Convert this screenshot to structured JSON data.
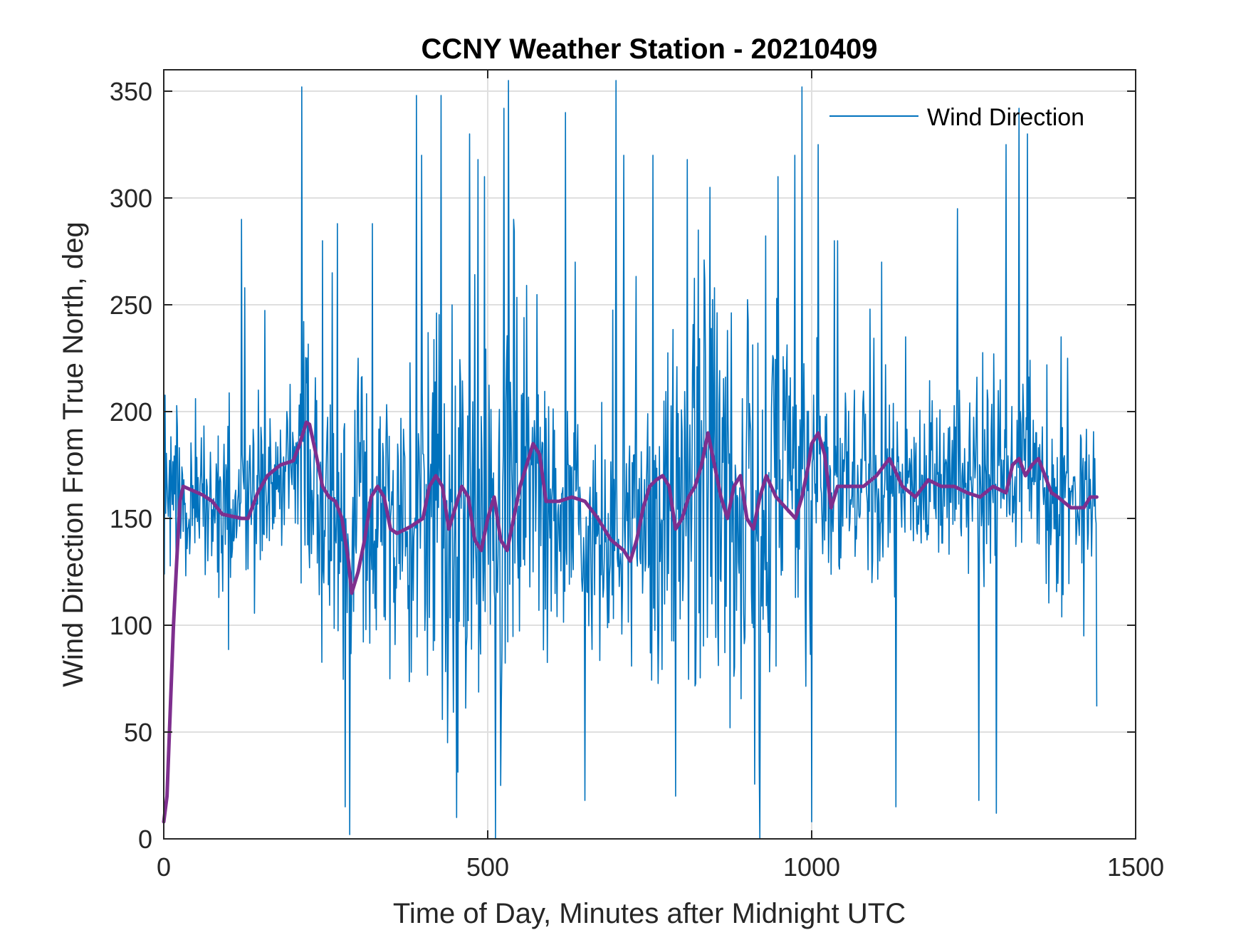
{
  "chart_data": {
    "type": "line",
    "title": "CCNY Weather Station - 20210409",
    "xlabel": "Time of Day, Minutes after Midnight UTC",
    "ylabel": "Wind Direction From True North, deg",
    "xlim": [
      0,
      1500
    ],
    "ylim": [
      0,
      360
    ],
    "xticks": [
      0,
      500,
      1000,
      1500
    ],
    "xtick_labels": [
      "0",
      "500",
      "1000",
      "1500"
    ],
    "yticks": [
      0,
      50,
      100,
      150,
      200,
      250,
      300,
      350
    ],
    "ytick_labels": [
      "0",
      "50",
      "100",
      "150",
      "200",
      "250",
      "300",
      "350"
    ],
    "grid": true,
    "legend_position": "top-right",
    "colors": {
      "raw": "#0072BD",
      "smooth": "#7E2F8E",
      "grid": "#DFDFDF",
      "axis": "#262626"
    },
    "series": [
      {
        "name": "Wind Direction",
        "role": "raw",
        "x_range": [
          0,
          1440
        ],
        "level_points": [
          [
            0,
            165
          ],
          [
            20,
            162
          ],
          [
            60,
            160
          ],
          [
            100,
            150
          ],
          [
            130,
            158
          ],
          [
            170,
            172
          ],
          [
            200,
            180
          ],
          [
            215,
            188
          ],
          [
            240,
            162
          ],
          [
            270,
            145
          ],
          [
            285,
            125
          ],
          [
            310,
            148
          ],
          [
            350,
            148
          ],
          [
            380,
            150
          ],
          [
            410,
            170
          ],
          [
            440,
            152
          ],
          [
            470,
            155
          ],
          [
            500,
            148
          ],
          [
            530,
            160
          ],
          [
            560,
            178
          ],
          [
            590,
            158
          ],
          [
            630,
            155
          ],
          [
            650,
            140
          ],
          [
            690,
            145
          ],
          [
            720,
            165
          ],
          [
            760,
            150
          ],
          [
            790,
            168
          ],
          [
            820,
            160
          ],
          [
            850,
            155
          ],
          [
            880,
            150
          ],
          [
            910,
            148
          ],
          [
            950,
            158
          ],
          [
            980,
            160
          ],
          [
            1000,
            185
          ],
          [
            1030,
            165
          ],
          [
            1060,
            168
          ],
          [
            1100,
            170
          ],
          [
            1150,
            165
          ],
          [
            1200,
            165
          ],
          [
            1250,
            162
          ],
          [
            1300,
            172
          ],
          [
            1330,
            180
          ],
          [
            1360,
            158
          ],
          [
            1400,
            160
          ],
          [
            1440,
            162
          ]
        ],
        "spread_points": [
          [
            0,
            18
          ],
          [
            100,
            22
          ],
          [
            200,
            25
          ],
          [
            300,
            40
          ],
          [
            400,
            35
          ],
          [
            450,
            55
          ],
          [
            500,
            50
          ],
          [
            550,
            50
          ],
          [
            600,
            30
          ],
          [
            650,
            28
          ],
          [
            700,
            40
          ],
          [
            800,
            45
          ],
          [
            850,
            55
          ],
          [
            900,
            55
          ],
          [
            950,
            40
          ],
          [
            1000,
            35
          ],
          [
            1050,
            22
          ],
          [
            1150,
            22
          ],
          [
            1250,
            20
          ],
          [
            1350,
            22
          ],
          [
            1440,
            18
          ]
        ],
        "spikes": [
          [
            120,
            290
          ],
          [
            125,
            258
          ],
          [
            213,
            352
          ],
          [
            245,
            280
          ],
          [
            260,
            265
          ],
          [
            268,
            288
          ],
          [
            280,
            15
          ],
          [
            287,
            2
          ],
          [
            300,
            225
          ],
          [
            322,
            288
          ],
          [
            390,
            348
          ],
          [
            398,
            320
          ],
          [
            428,
            348
          ],
          [
            438,
            45
          ],
          [
            450,
            212
          ],
          [
            452,
            10
          ],
          [
            472,
            330
          ],
          [
            485,
            318
          ],
          [
            495,
            310
          ],
          [
            520,
            25
          ],
          [
            525,
            342
          ],
          [
            532,
            355
          ],
          [
            540,
            290
          ],
          [
            620,
            340
          ],
          [
            635,
            270
          ],
          [
            650,
            18
          ],
          [
            698,
            355
          ],
          [
            710,
            320
          ],
          [
            755,
            320
          ],
          [
            790,
            20
          ],
          [
            808,
            318
          ],
          [
            825,
            285
          ],
          [
            843,
            305
          ],
          [
            850,
            258
          ],
          [
            870,
            238
          ],
          [
            920,
            0
          ],
          [
            948,
            310
          ],
          [
            974,
            320
          ],
          [
            985,
            352
          ],
          [
            1000,
            8
          ],
          [
            1010,
            325
          ],
          [
            1035,
            280
          ],
          [
            1040,
            280
          ],
          [
            1066,
            210
          ],
          [
            1090,
            248
          ],
          [
            1108,
            270
          ],
          [
            1130,
            15
          ],
          [
            1145,
            235
          ],
          [
            1225,
            295
          ],
          [
            1258,
            18
          ],
          [
            1285,
            12
          ],
          [
            1300,
            325
          ],
          [
            1320,
            342
          ],
          [
            1333,
            330
          ],
          [
            1385,
            235
          ],
          [
            1395,
            225
          ],
          [
            1420,
            95
          ],
          [
            1440,
            62
          ]
        ]
      },
      {
        "name": "",
        "role": "moving-average",
        "points": [
          [
            0,
            8
          ],
          [
            5,
            20
          ],
          [
            10,
            60
          ],
          [
            15,
            100
          ],
          [
            20,
            130
          ],
          [
            25,
            158
          ],
          [
            30,
            165
          ],
          [
            45,
            163
          ],
          [
            60,
            161
          ],
          [
            75,
            158
          ],
          [
            90,
            152
          ],
          [
            105,
            151
          ],
          [
            120,
            150
          ],
          [
            130,
            150
          ],
          [
            145,
            162
          ],
          [
            160,
            170
          ],
          [
            180,
            175
          ],
          [
            200,
            177
          ],
          [
            210,
            185
          ],
          [
            220,
            195
          ],
          [
            225,
            194
          ],
          [
            235,
            180
          ],
          [
            245,
            165
          ],
          [
            255,
            160
          ],
          [
            265,
            158
          ],
          [
            275,
            150
          ],
          [
            285,
            130
          ],
          [
            290,
            115
          ],
          [
            300,
            125
          ],
          [
            310,
            140
          ],
          [
            320,
            160
          ],
          [
            330,
            165
          ],
          [
            340,
            160
          ],
          [
            350,
            145
          ],
          [
            360,
            143
          ],
          [
            380,
            146
          ],
          [
            400,
            150
          ],
          [
            410,
            165
          ],
          [
            420,
            170
          ],
          [
            430,
            165
          ],
          [
            440,
            145
          ],
          [
            450,
            155
          ],
          [
            460,
            165
          ],
          [
            470,
            160
          ],
          [
            480,
            140
          ],
          [
            490,
            135
          ],
          [
            500,
            150
          ],
          [
            510,
            160
          ],
          [
            520,
            140
          ],
          [
            530,
            135
          ],
          [
            540,
            150
          ],
          [
            550,
            165
          ],
          [
            560,
            175
          ],
          [
            570,
            185
          ],
          [
            580,
            180
          ],
          [
            590,
            158
          ],
          [
            610,
            158
          ],
          [
            630,
            160
          ],
          [
            650,
            158
          ],
          [
            670,
            150
          ],
          [
            690,
            140
          ],
          [
            710,
            135
          ],
          [
            720,
            130
          ],
          [
            730,
            140
          ],
          [
            740,
            155
          ],
          [
            750,
            165
          ],
          [
            760,
            168
          ],
          [
            770,
            170
          ],
          [
            780,
            165
          ],
          [
            790,
            145
          ],
          [
            800,
            150
          ],
          [
            810,
            160
          ],
          [
            820,
            165
          ],
          [
            830,
            175
          ],
          [
            840,
            190
          ],
          [
            850,
            175
          ],
          [
            860,
            160
          ],
          [
            870,
            150
          ],
          [
            880,
            165
          ],
          [
            890,
            170
          ],
          [
            900,
            150
          ],
          [
            910,
            145
          ],
          [
            920,
            160
          ],
          [
            930,
            170
          ],
          [
            945,
            160
          ],
          [
            960,
            155
          ],
          [
            975,
            150
          ],
          [
            985,
            160
          ],
          [
            995,
            175
          ],
          [
            1000,
            185
          ],
          [
            1010,
            190
          ],
          [
            1020,
            180
          ],
          [
            1030,
            155
          ],
          [
            1040,
            165
          ],
          [
            1060,
            165
          ],
          [
            1080,
            165
          ],
          [
            1100,
            170
          ],
          [
            1120,
            178
          ],
          [
            1140,
            165
          ],
          [
            1160,
            160
          ],
          [
            1180,
            168
          ],
          [
            1200,
            165
          ],
          [
            1220,
            165
          ],
          [
            1240,
            162
          ],
          [
            1260,
            160
          ],
          [
            1280,
            165
          ],
          [
            1300,
            162
          ],
          [
            1310,
            175
          ],
          [
            1320,
            178
          ],
          [
            1330,
            170
          ],
          [
            1340,
            175
          ],
          [
            1350,
            178
          ],
          [
            1360,
            170
          ],
          [
            1370,
            162
          ],
          [
            1380,
            160
          ],
          [
            1400,
            155
          ],
          [
            1420,
            155
          ],
          [
            1430,
            160
          ],
          [
            1440,
            160
          ]
        ]
      }
    ]
  }
}
